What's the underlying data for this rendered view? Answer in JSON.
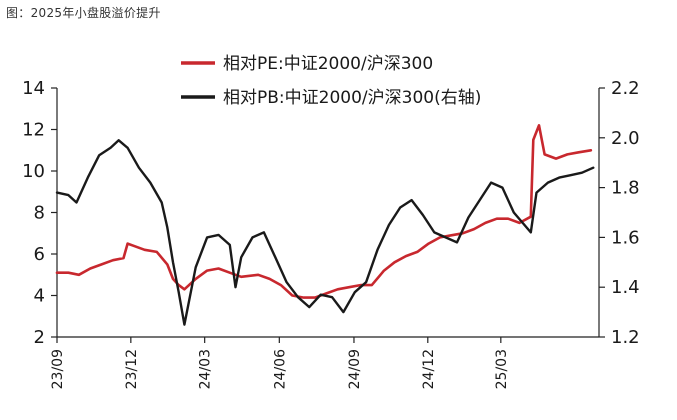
{
  "figure_title": "图：2025年小盘股溢价提升",
  "chart_data": {
    "type": "line",
    "title": "",
    "xlabel": "",
    "ylabel": "",
    "x_range": [
      "2023-09-01",
      "2025-06-30"
    ],
    "x_ticks": [
      "23/09",
      "23/12",
      "24/03",
      "24/06",
      "24/09",
      "24/12",
      "25/03"
    ],
    "x_tick_dates": [
      "2023-09-01",
      "2023-12-01",
      "2024-03-01",
      "2024-06-01",
      "2024-09-01",
      "2024-12-01",
      "2025-03-01"
    ],
    "ylim_left": [
      2,
      14
    ],
    "y_ticks_left": [
      "2",
      "4",
      "6",
      "8",
      "10",
      "12",
      "14"
    ],
    "ylim_right": [
      1.2,
      2.2
    ],
    "y_ticks_right": [
      "1.2",
      "1.4",
      "1.6",
      "1.8",
      "2.0",
      "2.2"
    ],
    "grid": false,
    "legend_position": "top-center",
    "series": [
      {
        "name": "相对PE:中证2000/沪深300",
        "axis": "left",
        "color": "#c8282e",
        "points": [
          [
            "2023-09-01",
            5.1
          ],
          [
            "2023-09-15",
            5.1
          ],
          [
            "2023-09-28",
            5.0
          ],
          [
            "2023-10-12",
            5.3
          ],
          [
            "2023-10-26",
            5.5
          ],
          [
            "2023-11-09",
            5.7
          ],
          [
            "2023-11-22",
            5.8
          ],
          [
            "2023-11-27",
            6.5
          ],
          [
            "2023-12-04",
            6.4
          ],
          [
            "2023-12-18",
            6.2
          ],
          [
            "2024-01-02",
            6.1
          ],
          [
            "2024-01-15",
            5.5
          ],
          [
            "2024-01-22",
            4.8
          ],
          [
            "2024-01-29",
            4.5
          ],
          [
            "2024-02-05",
            4.3
          ],
          [
            "2024-02-19",
            4.8
          ],
          [
            "2024-03-04",
            5.2
          ],
          [
            "2024-03-18",
            5.3
          ],
          [
            "2024-04-01",
            5.1
          ],
          [
            "2024-04-15",
            4.9
          ],
          [
            "2024-05-06",
            5.0
          ],
          [
            "2024-05-20",
            4.8
          ],
          [
            "2024-06-03",
            4.5
          ],
          [
            "2024-06-17",
            4.0
          ],
          [
            "2024-07-01",
            3.9
          ],
          [
            "2024-07-15",
            3.9
          ],
          [
            "2024-07-29",
            4.1
          ],
          [
            "2024-08-12",
            4.3
          ],
          [
            "2024-08-26",
            4.4
          ],
          [
            "2024-09-09",
            4.5
          ],
          [
            "2024-09-23",
            4.5
          ],
          [
            "2024-10-08",
            5.2
          ],
          [
            "2024-10-21",
            5.6
          ],
          [
            "2024-11-04",
            5.9
          ],
          [
            "2024-11-18",
            6.1
          ],
          [
            "2024-12-02",
            6.5
          ],
          [
            "2024-12-16",
            6.8
          ],
          [
            "2024-12-30",
            6.9
          ],
          [
            "2025-01-13",
            7.0
          ],
          [
            "2025-01-27",
            7.2
          ],
          [
            "2025-02-10",
            7.5
          ],
          [
            "2025-02-24",
            7.7
          ],
          [
            "2025-03-10",
            7.7
          ],
          [
            "2025-03-24",
            7.5
          ],
          [
            "2025-04-07",
            7.8
          ],
          [
            "2025-04-10",
            11.5
          ],
          [
            "2025-04-17",
            12.2
          ],
          [
            "2025-04-24",
            10.8
          ],
          [
            "2025-05-08",
            10.6
          ],
          [
            "2025-05-22",
            10.8
          ],
          [
            "2025-06-05",
            10.9
          ],
          [
            "2025-06-20",
            11.0
          ]
        ]
      },
      {
        "name": "相对PB:中证2000/沪深300(右轴)",
        "axis": "right",
        "color": "#1a1a1a",
        "points": [
          [
            "2023-09-01",
            1.78
          ],
          [
            "2023-09-15",
            1.77
          ],
          [
            "2023-09-25",
            1.74
          ],
          [
            "2023-10-09",
            1.84
          ],
          [
            "2023-10-23",
            1.93
          ],
          [
            "2023-11-06",
            1.96
          ],
          [
            "2023-11-16",
            1.99
          ],
          [
            "2023-11-27",
            1.96
          ],
          [
            "2023-12-11",
            1.88
          ],
          [
            "2023-12-25",
            1.82
          ],
          [
            "2024-01-08",
            1.74
          ],
          [
            "2024-01-15",
            1.64
          ],
          [
            "2024-01-22",
            1.5
          ],
          [
            "2024-01-29",
            1.38
          ],
          [
            "2024-02-05",
            1.25
          ],
          [
            "2024-02-19",
            1.48
          ],
          [
            "2024-03-04",
            1.6
          ],
          [
            "2024-03-18",
            1.61
          ],
          [
            "2024-04-01",
            1.57
          ],
          [
            "2024-04-08",
            1.4
          ],
          [
            "2024-04-15",
            1.52
          ],
          [
            "2024-04-29",
            1.6
          ],
          [
            "2024-05-13",
            1.62
          ],
          [
            "2024-05-27",
            1.52
          ],
          [
            "2024-06-10",
            1.42
          ],
          [
            "2024-06-24",
            1.36
          ],
          [
            "2024-07-08",
            1.32
          ],
          [
            "2024-07-22",
            1.37
          ],
          [
            "2024-08-05",
            1.36
          ],
          [
            "2024-08-19",
            1.3
          ],
          [
            "2024-09-02",
            1.38
          ],
          [
            "2024-09-16",
            1.42
          ],
          [
            "2024-09-30",
            1.55
          ],
          [
            "2024-10-14",
            1.65
          ],
          [
            "2024-10-28",
            1.72
          ],
          [
            "2024-11-11",
            1.75
          ],
          [
            "2024-11-25",
            1.69
          ],
          [
            "2024-12-09",
            1.62
          ],
          [
            "2024-12-23",
            1.6
          ],
          [
            "2025-01-06",
            1.58
          ],
          [
            "2025-01-20",
            1.68
          ],
          [
            "2025-02-03",
            1.75
          ],
          [
            "2025-02-17",
            1.82
          ],
          [
            "2025-03-03",
            1.8
          ],
          [
            "2025-03-17",
            1.7
          ],
          [
            "2025-04-07",
            1.62
          ],
          [
            "2025-04-14",
            1.78
          ],
          [
            "2025-04-28",
            1.82
          ],
          [
            "2025-05-12",
            1.84
          ],
          [
            "2025-05-26",
            1.85
          ],
          [
            "2025-06-09",
            1.86
          ],
          [
            "2025-06-23",
            1.88
          ]
        ]
      }
    ]
  }
}
